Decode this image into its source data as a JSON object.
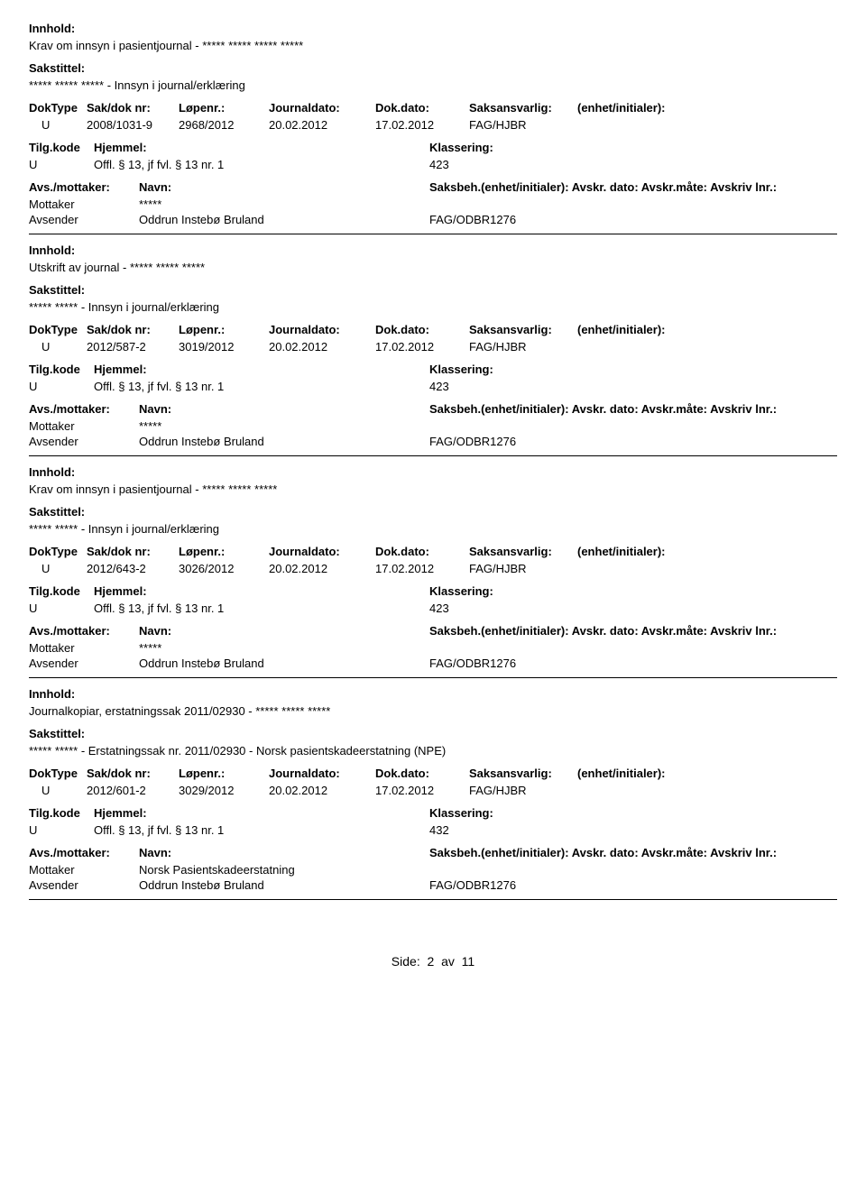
{
  "labels": {
    "innhold": "Innhold:",
    "sakstittel": "Sakstittel:",
    "doktype": "DokType",
    "sakdok": "Sak/dok nr:",
    "lopenr": "Løpenr.:",
    "jdato": "Journaldato:",
    "ddato": "Dok.dato:",
    "saksa": "Saksansvarlig:",
    "enh": "(enhet/initialer):",
    "tilg": "Tilg.kode",
    "hjemmel": "Hjemmel:",
    "klass": "Klassering:",
    "avs": "Avs./mottaker:",
    "navn": "Navn:",
    "saksbeh": "Saksbeh.(enhet/initialer): Avskr. dato:  Avskr.måte: Avskriv lnr.:",
    "mottaker": "Mottaker",
    "avsender": "Avsender"
  },
  "entries": [
    {
      "innhold": "Krav om innsyn i pasientjournal - ***** ***** ***** *****",
      "sakstittel": "***** ***** ***** - Innsyn i journal/erklæring",
      "doktype": "U",
      "sakdok": "2008/1031-9",
      "lopenr": "2968/2012",
      "jdato": "20.02.2012",
      "ddato": "17.02.2012",
      "saksa": "FAG/HJBR",
      "enh": "",
      "tilg": "U",
      "hjemmel": "Offl. § 13, jf fvl. § 13 nr. 1",
      "klass": "423",
      "parties": [
        {
          "role": "Mottaker",
          "name": "*****",
          "code": ""
        },
        {
          "role": "Avsender",
          "name": "Oddrun Instebø Bruland",
          "code": "FAG/ODBR1276"
        }
      ]
    },
    {
      "innhold": "Utskrift av journal - ***** ***** *****",
      "sakstittel": "***** ***** - Innsyn i journal/erklæring",
      "doktype": "U",
      "sakdok": "2012/587-2",
      "lopenr": "3019/2012",
      "jdato": "20.02.2012",
      "ddato": "17.02.2012",
      "saksa": "FAG/HJBR",
      "enh": "",
      "tilg": "U",
      "hjemmel": "Offl. § 13, jf fvl. § 13 nr. 1",
      "klass": "423",
      "parties": [
        {
          "role": "Mottaker",
          "name": "*****",
          "code": ""
        },
        {
          "role": "Avsender",
          "name": "Oddrun Instebø Bruland",
          "code": "FAG/ODBR1276"
        }
      ]
    },
    {
      "innhold": "Krav om innsyn i pasientjournal - ***** ***** *****",
      "sakstittel": "***** ***** - Innsyn i journal/erklæring",
      "doktype": "U",
      "sakdok": "2012/643-2",
      "lopenr": "3026/2012",
      "jdato": "20.02.2012",
      "ddato": "17.02.2012",
      "saksa": "FAG/HJBR",
      "enh": "",
      "tilg": "U",
      "hjemmel": "Offl. § 13, jf fvl. § 13 nr. 1",
      "klass": "423",
      "parties": [
        {
          "role": "Mottaker",
          "name": "*****",
          "code": ""
        },
        {
          "role": "Avsender",
          "name": "Oddrun Instebø Bruland",
          "code": "FAG/ODBR1276"
        }
      ]
    },
    {
      "innhold": "Journalkopiar, erstatningssak 2011/02930 - ***** ***** *****",
      "sakstittel": "***** ***** - Erstatningssak nr. 2011/02930 - Norsk pasientskadeerstatning (NPE)",
      "doktype": "U",
      "sakdok": "2012/601-2",
      "lopenr": "3029/2012",
      "jdato": "20.02.2012",
      "ddato": "17.02.2012",
      "saksa": "FAG/HJBR",
      "enh": "",
      "tilg": "U",
      "hjemmel": "Offl. § 13, jf fvl. § 13 nr. 1",
      "klass": "432",
      "parties": [
        {
          "role": "Mottaker",
          "name": "Norsk Pasientskadeerstatning",
          "code": ""
        },
        {
          "role": "Avsender",
          "name": "Oddrun Instebø Bruland",
          "code": "FAG/ODBR1276"
        }
      ]
    }
  ],
  "footer": {
    "prefix": "Side:",
    "page": "2",
    "sep": "av",
    "total": "11"
  }
}
